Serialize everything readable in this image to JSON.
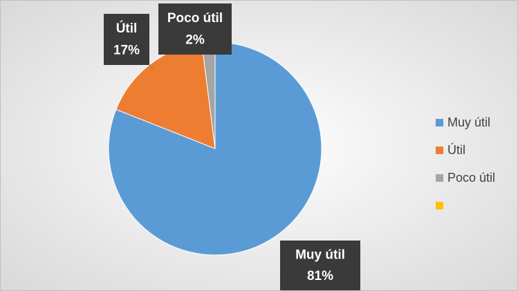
{
  "chart_data": {
    "type": "pie",
    "categories": [
      "Muy útil",
      "Útil",
      "Poco útil",
      null
    ],
    "values": [
      81,
      17,
      2,
      0
    ],
    "value_labels": [
      "81%",
      "17%",
      "2%",
      null
    ],
    "colors": [
      "#5b9bd5",
      "#ed7d31",
      "#a5a5a5",
      "#ffc000"
    ],
    "legend": "right"
  }
}
